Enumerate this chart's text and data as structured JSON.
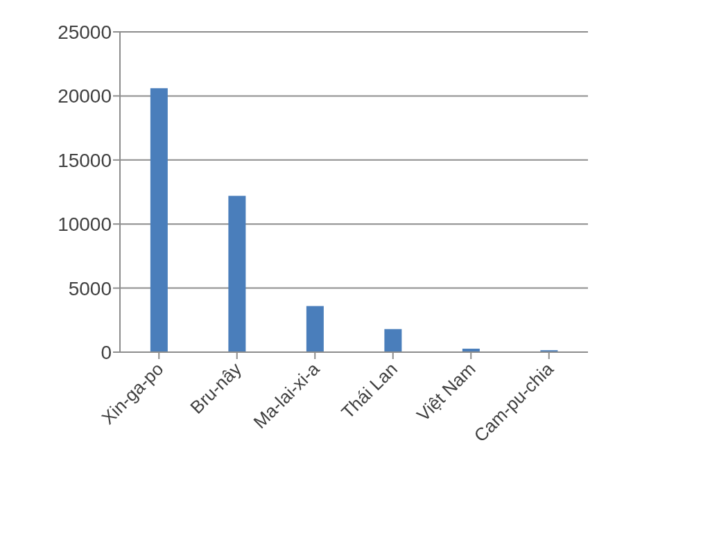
{
  "chart_data": {
    "type": "bar",
    "categories": [
      "Xin-ga-po",
      "Bru-nây",
      "Ma-lai-xi-a",
      "Thái Lan",
      "Việt Nam",
      "Cam-pu-chia"
    ],
    "values": [
      20600,
      12200,
      3600,
      1800,
      270,
      150
    ],
    "color": "#4a7ebb",
    "ylim": [
      0,
      25000
    ],
    "yticks": [
      0,
      5000,
      10000,
      15000,
      20000,
      25000
    ],
    "grid": "y"
  }
}
